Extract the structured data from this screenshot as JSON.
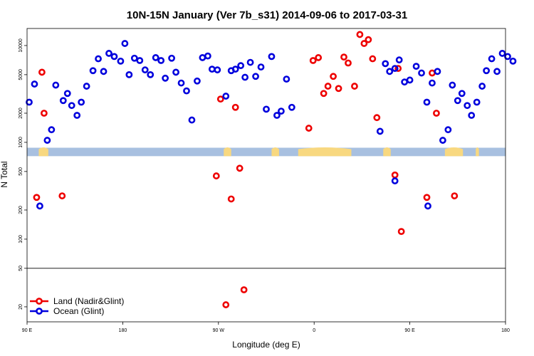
{
  "chart_data": {
    "type": "scatter",
    "title": "10N-15N January (Ver 7b_s31)   2014-09-06 to 2017-03-31",
    "xlabel": "Longitude (deg E)",
    "ylabel": "N Total",
    "x_ticks": [
      {
        "value": 90,
        "label": "90 E"
      },
      {
        "value": 180,
        "label": "180"
      },
      {
        "value": 270,
        "label": "90 W"
      },
      {
        "value": 360,
        "label": "0"
      },
      {
        "value": 450,
        "label": "90 E"
      },
      {
        "value": 540,
        "label": "180"
      }
    ],
    "xlim": [
      90,
      540
    ],
    "y_scale": "log",
    "ylim": [
      14,
      15000
    ],
    "y_ticks": [
      {
        "value": 20,
        "label": "20"
      },
      {
        "value": 50,
        "label": "50"
      },
      {
        "value": 100,
        "label": "100"
      },
      {
        "value": 200,
        "label": "200"
      },
      {
        "value": 500,
        "label": "500"
      },
      {
        "value": 1000,
        "label": "1000"
      },
      {
        "value": 2000,
        "label": "2000"
      },
      {
        "value": 5000,
        "label": "5000"
      },
      {
        "value": 10000,
        "label": "10000"
      }
    ],
    "reference_line_y": 50,
    "land_band": {
      "y_range": [
        720,
        880
      ],
      "ocean_color": "#a8c0e0",
      "land_color": "#f8d880",
      "land_segments": [
        [
          101,
          110
        ],
        [
          275,
          282
        ],
        [
          320,
          327
        ],
        [
          345,
          395
        ],
        [
          425,
          432
        ],
        [
          483,
          500
        ],
        [
          512,
          515
        ]
      ]
    },
    "legend_position": "bottom-left",
    "series": [
      {
        "name": "Land (Nadir&Glint)",
        "color": "#ee0000",
        "points": [
          [
            99,
            270
          ],
          [
            104,
            5300
          ],
          [
            106,
            2000
          ],
          [
            123,
            280
          ],
          [
            268,
            450
          ],
          [
            272,
            2800
          ],
          [
            282,
            260
          ],
          [
            286,
            2300
          ],
          [
            290,
            540
          ],
          [
            294,
            30
          ],
          [
            277,
            21
          ],
          [
            355,
            1400
          ],
          [
            359,
            7000
          ],
          [
            364,
            7500
          ],
          [
            369,
            3200
          ],
          [
            373,
            3800
          ],
          [
            378,
            4800
          ],
          [
            383,
            3600
          ],
          [
            388,
            7600
          ],
          [
            392,
            6600
          ],
          [
            398,
            3800
          ],
          [
            403,
            13000
          ],
          [
            407,
            10500
          ],
          [
            411,
            11500
          ],
          [
            415,
            7300
          ],
          [
            419,
            1800
          ],
          [
            436,
            460
          ],
          [
            439,
            5800
          ],
          [
            442,
            120
          ],
          [
            466,
            270
          ],
          [
            471,
            5200
          ],
          [
            475,
            2000
          ],
          [
            492,
            280
          ]
        ]
      },
      {
        "name": "Ocean (Glint)",
        "color": "#0000dd",
        "points": [
          [
            92,
            2600
          ],
          [
            97,
            4000
          ],
          [
            102,
            220
          ],
          [
            109,
            1050
          ],
          [
            113,
            1350
          ],
          [
            117,
            3900
          ],
          [
            124,
            2700
          ],
          [
            128,
            3200
          ],
          [
            132,
            2400
          ],
          [
            137,
            1900
          ],
          [
            141,
            2600
          ],
          [
            146,
            3800
          ],
          [
            152,
            5500
          ],
          [
            157,
            7300
          ],
          [
            162,
            5400
          ],
          [
            167,
            8300
          ],
          [
            172,
            7700
          ],
          [
            178,
            6900
          ],
          [
            182,
            10500
          ],
          [
            186,
            5000
          ],
          [
            191,
            7400
          ],
          [
            196,
            7000
          ],
          [
            201,
            5600
          ],
          [
            206,
            5000
          ],
          [
            211,
            7500
          ],
          [
            216,
            7000
          ],
          [
            220,
            4600
          ],
          [
            226,
            7400
          ],
          [
            230,
            5300
          ],
          [
            235,
            4100
          ],
          [
            240,
            3400
          ],
          [
            245,
            1700
          ],
          [
            250,
            4300
          ],
          [
            255,
            7500
          ],
          [
            260,
            7800
          ],
          [
            264,
            5700
          ],
          [
            269,
            5600
          ],
          [
            277,
            3000
          ],
          [
            282,
            5500
          ],
          [
            286,
            5700
          ],
          [
            291,
            6200
          ],
          [
            295,
            4700
          ],
          [
            300,
            6700
          ],
          [
            305,
            4800
          ],
          [
            310,
            6000
          ],
          [
            315,
            2200
          ],
          [
            320,
            7700
          ],
          [
            325,
            1900
          ],
          [
            329,
            2100
          ],
          [
            334,
            4500
          ],
          [
            339,
            2300
          ],
          [
            422,
            1300
          ],
          [
            427,
            6500
          ],
          [
            431,
            5400
          ],
          [
            436,
            5800
          ],
          [
            440,
            7100
          ],
          [
            445,
            4200
          ],
          [
            450,
            4400
          ],
          [
            436,
            400
          ],
          [
            456,
            6100
          ],
          [
            461,
            5200
          ],
          [
            466,
            2600
          ],
          [
            471,
            4100
          ],
          [
            476,
            5400
          ],
          [
            481,
            1050
          ],
          [
            486,
            1350
          ],
          [
            490,
            3900
          ],
          [
            495,
            2700
          ],
          [
            499,
            3200
          ],
          [
            504,
            2400
          ],
          [
            508,
            1900
          ],
          [
            513,
            2600
          ],
          [
            518,
            3800
          ],
          [
            522,
            5500
          ],
          [
            527,
            7300
          ],
          [
            532,
            5400
          ],
          [
            537,
            8300
          ],
          [
            542,
            7700
          ],
          [
            547,
            6900
          ],
          [
            467,
            220
          ]
        ]
      }
    ]
  }
}
